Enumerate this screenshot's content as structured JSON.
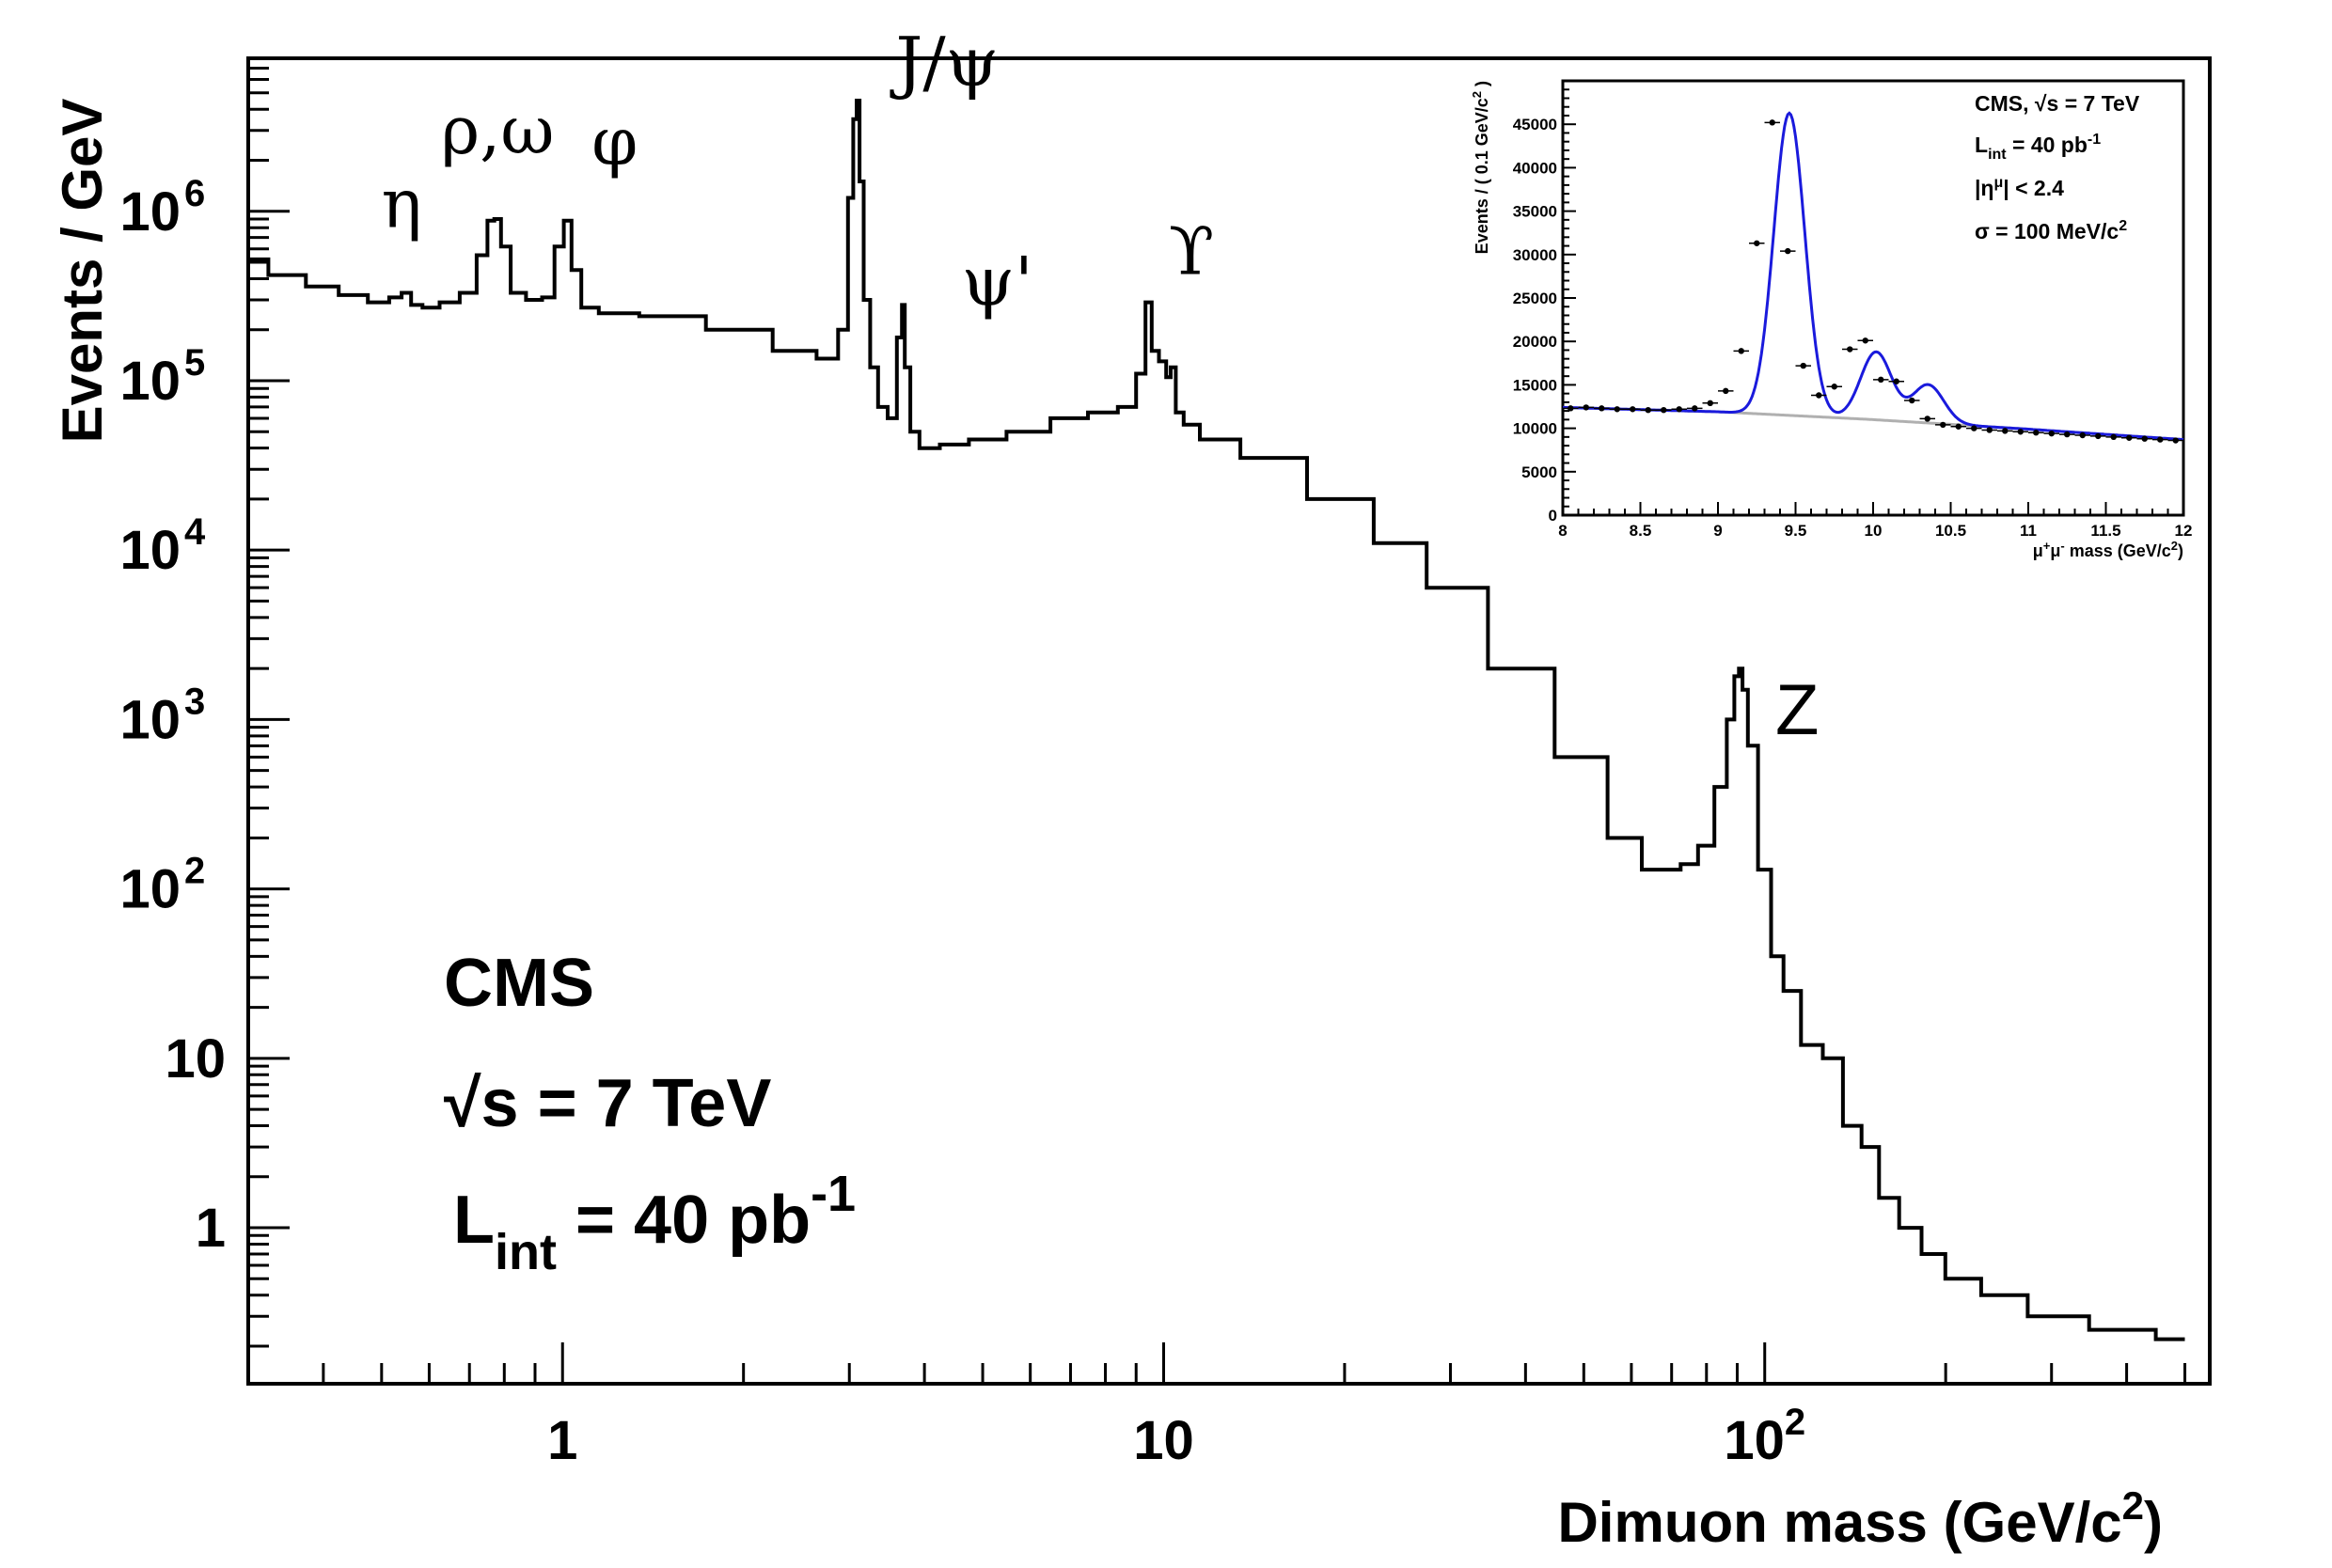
{
  "chart_data": [
    {
      "type": "line",
      "ylabel": "Events / GeV",
      "xlabel": {
        "main": "Dimuon mass (GeV/c",
        "sup": "2",
        "close": ")"
      },
      "xscale": "log",
      "yscale": "log",
      "xlim": [
        0.3,
        550
      ],
      "ylim": [
        0.12,
        8000000
      ],
      "xticks": [
        {
          "value": 1,
          "base": "1",
          "sup": ""
        },
        {
          "value": 10,
          "base": "10",
          "sup": ""
        },
        {
          "value": 100,
          "base": "10",
          "sup": "2"
        }
      ],
      "yticks": [
        {
          "value": 1,
          "base": "1",
          "sup": ""
        },
        {
          "value": 10,
          "base": "10",
          "sup": ""
        },
        {
          "value": 100,
          "base": "10",
          "sup": "2"
        },
        {
          "value": 1000,
          "base": "10",
          "sup": "3"
        },
        {
          "value": 10000,
          "base": "10",
          "sup": "4"
        },
        {
          "value": 100000,
          "base": "10",
          "sup": "5"
        },
        {
          "value": 1000000,
          "base": "10",
          "sup": "6"
        }
      ],
      "annotations": [
        {
          "text": "η",
          "x": 0.54
        },
        {
          "text": "ρ,ω",
          "x": 0.78
        },
        {
          "text": "φ",
          "x": 1.02
        },
        {
          "text": "J/ψ",
          "x": 3.1
        },
        {
          "text": "ψ'",
          "x": 3.69
        },
        {
          "text": "ϒ",
          "x": 9.46
        },
        {
          "text": "Z",
          "x": 91.2
        }
      ],
      "legend_text": {
        "experiment": "CMS",
        "sqrt_symbol": "√",
        "energy": "s = 7 TeV",
        "lumi_main": "L",
        "lumi_sub": "int",
        "lumi_value": " = 40 pb",
        "lumi_sup": "-1"
      },
      "series": [
        {
          "points": [
            [
              0.3,
              520000
            ],
            [
              0.35,
              420000
            ],
            [
              0.4,
              360000
            ],
            [
              0.45,
              320000
            ],
            [
              0.5,
              290000
            ],
            [
              0.53,
              310000
            ],
            [
              0.55,
              330000
            ],
            [
              0.57,
              280000
            ],
            [
              0.6,
              270000
            ],
            [
              0.65,
              290000
            ],
            [
              0.7,
              330000
            ],
            [
              0.74,
              550000
            ],
            [
              0.76,
              880000
            ],
            [
              0.78,
              900000
            ],
            [
              0.8,
              620000
            ],
            [
              0.84,
              330000
            ],
            [
              0.9,
              300000
            ],
            [
              0.95,
              310000
            ],
            [
              0.99,
              620000
            ],
            [
              1.02,
              880000
            ],
            [
              1.05,
              450000
            ],
            [
              1.1,
              270000
            ],
            [
              1.2,
              250000
            ],
            [
              1.5,
              240000
            ],
            [
              2.0,
              200000
            ],
            [
              2.5,
              150000
            ],
            [
              2.8,
              135000
            ],
            [
              2.95,
              200000
            ],
            [
              3.02,
              1200000
            ],
            [
              3.07,
              3500000
            ],
            [
              3.1,
              4500000
            ],
            [
              3.14,
              1500000
            ],
            [
              3.2,
              300000
            ],
            [
              3.3,
              120000
            ],
            [
              3.4,
              70000
            ],
            [
              3.55,
              60000
            ],
            [
              3.65,
              180000
            ],
            [
              3.69,
              280000
            ],
            [
              3.73,
              120000
            ],
            [
              3.85,
              50000
            ],
            [
              4.0,
              40000
            ],
            [
              4.5,
              42000
            ],
            [
              5.0,
              45000
            ],
            [
              6.0,
              50000
            ],
            [
              7.0,
              60000
            ],
            [
              8.0,
              65000
            ],
            [
              8.8,
              70000
            ],
            [
              9.2,
              110000
            ],
            [
              9.46,
              290000
            ],
            [
              9.65,
              150000
            ],
            [
              10.0,
              130000
            ],
            [
              10.2,
              105000
            ],
            [
              10.35,
              120000
            ],
            [
              10.6,
              65000
            ],
            [
              11,
              55000
            ],
            [
              12,
              45000
            ],
            [
              15,
              35000
            ],
            [
              20,
              20000
            ],
            [
              25,
              11000
            ],
            [
              30,
              6000
            ],
            [
              40,
              2000
            ],
            [
              50,
              600
            ],
            [
              60,
              200
            ],
            [
              65,
              130
            ],
            [
              70,
              130
            ],
            [
              75,
              140
            ],
            [
              80,
              180
            ],
            [
              85,
              400
            ],
            [
              88,
              1000
            ],
            [
              90,
              1800
            ],
            [
              91.2,
              2000
            ],
            [
              92.5,
              1500
            ],
            [
              95,
              700
            ],
            [
              100,
              130
            ],
            [
              105,
              40
            ],
            [
              110,
              25
            ],
            [
              120,
              12
            ],
            [
              130,
              10
            ],
            [
              140,
              4
            ],
            [
              150,
              3
            ],
            [
              160,
              1.5
            ],
            [
              175,
              1.0
            ],
            [
              190,
              0.7
            ],
            [
              210,
              0.5
            ],
            [
              250,
              0.4
            ],
            [
              300,
              0.3
            ],
            [
              400,
              0.25
            ],
            [
              500,
              0.22
            ]
          ]
        }
      ]
    },
    {
      "type": "scatter",
      "xlabel": {
        "main": "μ",
        "sup1": "+",
        "mid": "μ",
        "sup2": "-",
        "tail": " mass (GeV/c",
        "sup3": "2",
        "close": ")"
      },
      "ylabel": {
        "main": "Events / ( 0.1 GeV/c",
        "sup": "2",
        "close": " )"
      },
      "xlim": [
        8,
        12
      ],
      "ylim": [
        0,
        50000
      ],
      "xticks": [
        "8",
        "8.5",
        "9",
        "9.5",
        "10",
        "10.5",
        "11",
        "11.5",
        "12"
      ],
      "yticks": [
        "0",
        "5000",
        "10000",
        "15000",
        "20000",
        "25000",
        "30000",
        "35000",
        "40000",
        "45000"
      ],
      "text": {
        "line1_pre": "CMS, ",
        "line1_sqrt": "√",
        "line1_post": "s = 7 TeV",
        "line2_main": "L",
        "line2_sub": "int",
        "line2_post": " = 40 pb",
        "line2_sup": "-1",
        "line3_pre": "|η",
        "line3_sup": "μ",
        "line3_post": "| < 2.4",
        "line4_pre": "σ = 100 MeV/c",
        "line4_sup": "2"
      },
      "colors": {
        "fit": "#1a1adc",
        "background": "#b0b0b0",
        "points": "#000000"
      },
      "points": [
        [
          8.05,
          12300
        ],
        [
          8.15,
          12400
        ],
        [
          8.25,
          12300
        ],
        [
          8.35,
          12200
        ],
        [
          8.45,
          12200
        ],
        [
          8.55,
          12100
        ],
        [
          8.65,
          12100
        ],
        [
          8.75,
          12200
        ],
        [
          8.85,
          12300
        ],
        [
          8.95,
          12900
        ],
        [
          9.05,
          14300
        ],
        [
          9.15,
          18900
        ],
        [
          9.25,
          31300
        ],
        [
          9.35,
          45200
        ],
        [
          9.45,
          30400
        ],
        [
          9.55,
          17200
        ],
        [
          9.65,
          13800
        ],
        [
          9.75,
          14800
        ],
        [
          9.85,
          19100
        ],
        [
          9.95,
          20100
        ],
        [
          10.05,
          15600
        ],
        [
          10.15,
          15400
        ],
        [
          10.25,
          13200
        ],
        [
          10.35,
          11100
        ],
        [
          10.45,
          10400
        ],
        [
          10.55,
          10200
        ],
        [
          10.65,
          10000
        ],
        [
          10.75,
          9800
        ],
        [
          10.85,
          9700
        ],
        [
          10.95,
          9600
        ],
        [
          11.05,
          9500
        ],
        [
          11.15,
          9400
        ],
        [
          11.25,
          9300
        ],
        [
          11.35,
          9200
        ],
        [
          11.45,
          9100
        ],
        [
          11.55,
          9000
        ],
        [
          11.65,
          8900
        ],
        [
          11.75,
          8800
        ],
        [
          11.85,
          8700
        ],
        [
          11.95,
          8600
        ]
      ],
      "fit_peaks": [
        {
          "mass": 9.46,
          "amplitude": 34800
        },
        {
          "mass": 10.02,
          "amplitude": 7800
        },
        {
          "mass": 10.355,
          "amplitude": 4400
        }
      ],
      "fit_sigma": 0.1,
      "background_curve": [
        [
          8,
          12400
        ],
        [
          9,
          11900
        ],
        [
          10,
          11000
        ],
        [
          11,
          9900
        ],
        [
          12,
          8700
        ]
      ]
    }
  ]
}
